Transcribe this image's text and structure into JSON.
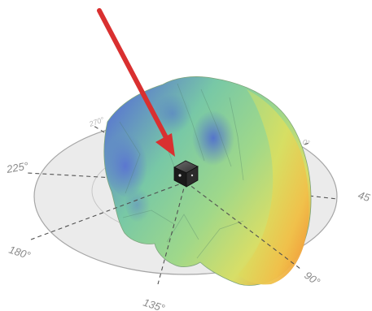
{
  "figure": {
    "description_visible": false,
    "angle_labels": {
      "a225": "225°",
      "a180": "180°",
      "a135": "135°",
      "a90": "90°",
      "a45": "45",
      "a270": "270°",
      "a0": "0°"
    },
    "colors": {
      "disc_fill": "#e9e9e9",
      "disc_stroke": "#9a9a9a",
      "arrow": "#d93030",
      "lobe_blue": "#5c7fd1",
      "lobe_green": "#7fcf8e",
      "lobe_yellow": "#e5df5b",
      "lobe_orange": "#f29a35"
    },
    "icons": {
      "pointer": "arrow-icon",
      "device": "cube-icon"
    }
  }
}
